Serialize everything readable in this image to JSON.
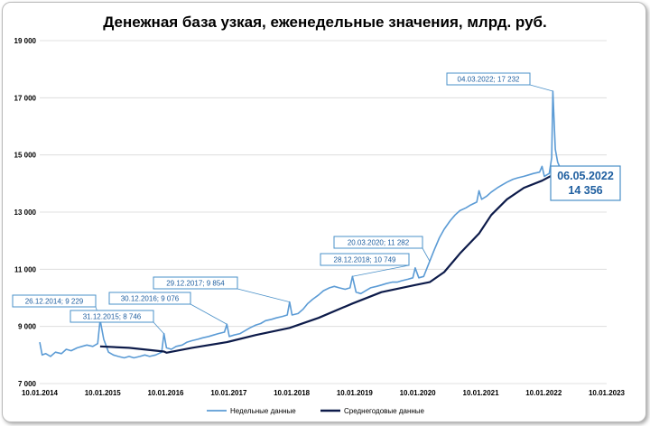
{
  "chart_data": {
    "type": "line",
    "title": "Денежная база узкая, еженедельные значения, млрд. руб.",
    "xlabel": "",
    "ylabel": "",
    "ylim": [
      7000,
      19000
    ],
    "y_ticks": [
      7000,
      9000,
      11000,
      13000,
      15000,
      17000,
      19000
    ],
    "y_tick_labels": [
      "7 000",
      "9 000",
      "11 000",
      "13 000",
      "15 000",
      "17 000",
      "19 000"
    ],
    "x_ticks": [
      "2014-01-10",
      "2015-01-10",
      "2016-01-10",
      "2017-01-10",
      "2018-01-10",
      "2019-01-10",
      "2020-01-10",
      "2021-01-10",
      "2022-01-10",
      "2023-01-10"
    ],
    "x_tick_labels": [
      "10.01.2014",
      "10.01.2015",
      "10.01.2016",
      "10.01.2017",
      "10.01.2018",
      "10.01.2019",
      "10.01.2020",
      "10.01.2021",
      "10.01.2022",
      "10.01.2023"
    ],
    "grid": "horizontal",
    "legend": "bottom",
    "series": [
      {
        "name": "Недельные данные",
        "color": "#5b9bd5",
        "points": [
          [
            "2014-01-10",
            8450
          ],
          [
            "2014-01-24",
            8000
          ],
          [
            "2014-02-14",
            8050
          ],
          [
            "2014-03-14",
            7950
          ],
          [
            "2014-04-11",
            8100
          ],
          [
            "2014-05-16",
            8050
          ],
          [
            "2014-06-13",
            8200
          ],
          [
            "2014-07-11",
            8150
          ],
          [
            "2014-08-15",
            8250
          ],
          [
            "2014-09-12",
            8300
          ],
          [
            "2014-10-10",
            8350
          ],
          [
            "2014-11-14",
            8300
          ],
          [
            "2014-12-12",
            8400
          ],
          [
            "2014-12-26",
            9229
          ],
          [
            "2015-01-16",
            8550
          ],
          [
            "2015-02-13",
            8100
          ],
          [
            "2015-03-13",
            8000
          ],
          [
            "2015-04-10",
            7950
          ],
          [
            "2015-05-15",
            7900
          ],
          [
            "2015-06-12",
            7950
          ],
          [
            "2015-07-10",
            7900
          ],
          [
            "2015-08-14",
            7950
          ],
          [
            "2015-09-11",
            8000
          ],
          [
            "2015-10-09",
            7950
          ],
          [
            "2015-11-13",
            8000
          ],
          [
            "2015-12-18",
            8100
          ],
          [
            "2015-12-31",
            8746
          ],
          [
            "2016-01-15",
            8250
          ],
          [
            "2016-02-12",
            8200
          ],
          [
            "2016-03-11",
            8300
          ],
          [
            "2016-04-15",
            8350
          ],
          [
            "2016-05-13",
            8450
          ],
          [
            "2016-06-10",
            8500
          ],
          [
            "2016-07-15",
            8550
          ],
          [
            "2016-08-12",
            8600
          ],
          [
            "2016-09-16",
            8650
          ],
          [
            "2016-10-14",
            8700
          ],
          [
            "2016-11-11",
            8750
          ],
          [
            "2016-12-16",
            8800
          ],
          [
            "2016-12-30",
            9076
          ],
          [
            "2017-01-13",
            8650
          ],
          [
            "2017-02-10",
            8700
          ],
          [
            "2017-03-17",
            8750
          ],
          [
            "2017-04-14",
            8850
          ],
          [
            "2017-05-12",
            8950
          ],
          [
            "2017-06-16",
            9050
          ],
          [
            "2017-07-14",
            9100
          ],
          [
            "2017-08-11",
            9200
          ],
          [
            "2017-09-15",
            9250
          ],
          [
            "2017-10-13",
            9300
          ],
          [
            "2017-11-17",
            9350
          ],
          [
            "2017-12-15",
            9400
          ],
          [
            "2017-12-29",
            9854
          ],
          [
            "2018-01-12",
            9400
          ],
          [
            "2018-02-16",
            9450
          ],
          [
            "2018-03-16",
            9600
          ],
          [
            "2018-04-13",
            9800
          ],
          [
            "2018-05-11",
            9950
          ],
          [
            "2018-06-15",
            10100
          ],
          [
            "2018-07-13",
            10250
          ],
          [
            "2018-08-17",
            10350
          ],
          [
            "2018-09-14",
            10400
          ],
          [
            "2018-10-12",
            10350
          ],
          [
            "2018-11-16",
            10300
          ],
          [
            "2018-12-14",
            10350
          ],
          [
            "2018-12-28",
            10749
          ],
          [
            "2019-01-18",
            10200
          ],
          [
            "2019-02-15",
            10150
          ],
          [
            "2019-03-15",
            10250
          ],
          [
            "2019-04-12",
            10350
          ],
          [
            "2019-05-17",
            10400
          ],
          [
            "2019-06-14",
            10450
          ],
          [
            "2019-07-12",
            10500
          ],
          [
            "2019-08-16",
            10550
          ],
          [
            "2019-09-13",
            10550
          ],
          [
            "2019-10-11",
            10600
          ],
          [
            "2019-11-15",
            10650
          ],
          [
            "2019-12-13",
            10700
          ],
          [
            "2019-12-27",
            11050
          ],
          [
            "2020-01-17",
            10700
          ],
          [
            "2020-02-14",
            10750
          ],
          [
            "2020-03-20",
            11282
          ],
          [
            "2020-04-17",
            11700
          ],
          [
            "2020-05-15",
            12100
          ],
          [
            "2020-06-12",
            12400
          ],
          [
            "2020-07-17",
            12700
          ],
          [
            "2020-08-14",
            12900
          ],
          [
            "2020-09-11",
            13050
          ],
          [
            "2020-10-16",
            13150
          ],
          [
            "2020-11-13",
            13250
          ],
          [
            "2020-12-18",
            13350
          ],
          [
            "2020-12-31",
            13750
          ],
          [
            "2021-01-15",
            13450
          ],
          [
            "2021-02-12",
            13550
          ],
          [
            "2021-03-12",
            13700
          ],
          [
            "2021-04-16",
            13850
          ],
          [
            "2021-05-14",
            13950
          ],
          [
            "2021-06-11",
            14050
          ],
          [
            "2021-07-16",
            14150
          ],
          [
            "2021-08-13",
            14200
          ],
          [
            "2021-09-17",
            14250
          ],
          [
            "2021-10-15",
            14300
          ],
          [
            "2021-11-12",
            14350
          ],
          [
            "2021-12-17",
            14400
          ],
          [
            "2021-12-31",
            14600
          ],
          [
            "2022-01-14",
            14250
          ],
          [
            "2022-02-11",
            14350
          ],
          [
            "2022-02-25",
            14900
          ],
          [
            "2022-03-04",
            17232
          ],
          [
            "2022-03-18",
            15200
          ],
          [
            "2022-04-01",
            14750
          ],
          [
            "2022-04-15",
            14550
          ],
          [
            "2022-04-29",
            14450
          ],
          [
            "2022-05-06",
            14356
          ]
        ]
      },
      {
        "name": "Среднегодовые данные",
        "color": "#0d1b4a",
        "points": [
          [
            "2014-12-26",
            8300
          ],
          [
            "2015-06-12",
            8250
          ],
          [
            "2015-12-31",
            8120
          ],
          [
            "2016-01-15",
            8080
          ],
          [
            "2016-06-10",
            8250
          ],
          [
            "2016-12-30",
            8450
          ],
          [
            "2017-06-16",
            8700
          ],
          [
            "2017-12-29",
            8950
          ],
          [
            "2018-06-15",
            9300
          ],
          [
            "2018-12-28",
            9800
          ],
          [
            "2019-06-14",
            10200
          ],
          [
            "2019-12-27",
            10450
          ],
          [
            "2020-03-20",
            10550
          ],
          [
            "2020-06-12",
            10900
          ],
          [
            "2020-09-11",
            11550
          ],
          [
            "2020-12-31",
            12250
          ],
          [
            "2021-03-12",
            12900
          ],
          [
            "2021-06-11",
            13450
          ],
          [
            "2021-09-17",
            13850
          ],
          [
            "2021-12-31",
            14100
          ],
          [
            "2022-03-04",
            14300
          ],
          [
            "2022-05-06",
            14500
          ]
        ]
      }
    ],
    "annotations": [
      {
        "date": "2014-12-26",
        "value": 9229,
        "label": "26.12.2014; 9 229"
      },
      {
        "date": "2015-12-31",
        "value": 8746,
        "label": "31.12.2015; 8 746"
      },
      {
        "date": "2016-12-30",
        "value": 9076,
        "label": "30.12.2016; 9 076"
      },
      {
        "date": "2017-12-29",
        "value": 9854,
        "label": "29.12.2017; 9 854"
      },
      {
        "date": "2018-12-28",
        "value": 10749,
        "label": "28.12.2018; 10 749"
      },
      {
        "date": "2020-03-20",
        "value": 11282,
        "label": "20.03.2020; 11 282"
      },
      {
        "date": "2022-03-04",
        "value": 17232,
        "label": "04.03.2022; 17 232"
      }
    ],
    "last_value": {
      "date_label": "06.05.2022",
      "value_label": "14 356"
    }
  }
}
